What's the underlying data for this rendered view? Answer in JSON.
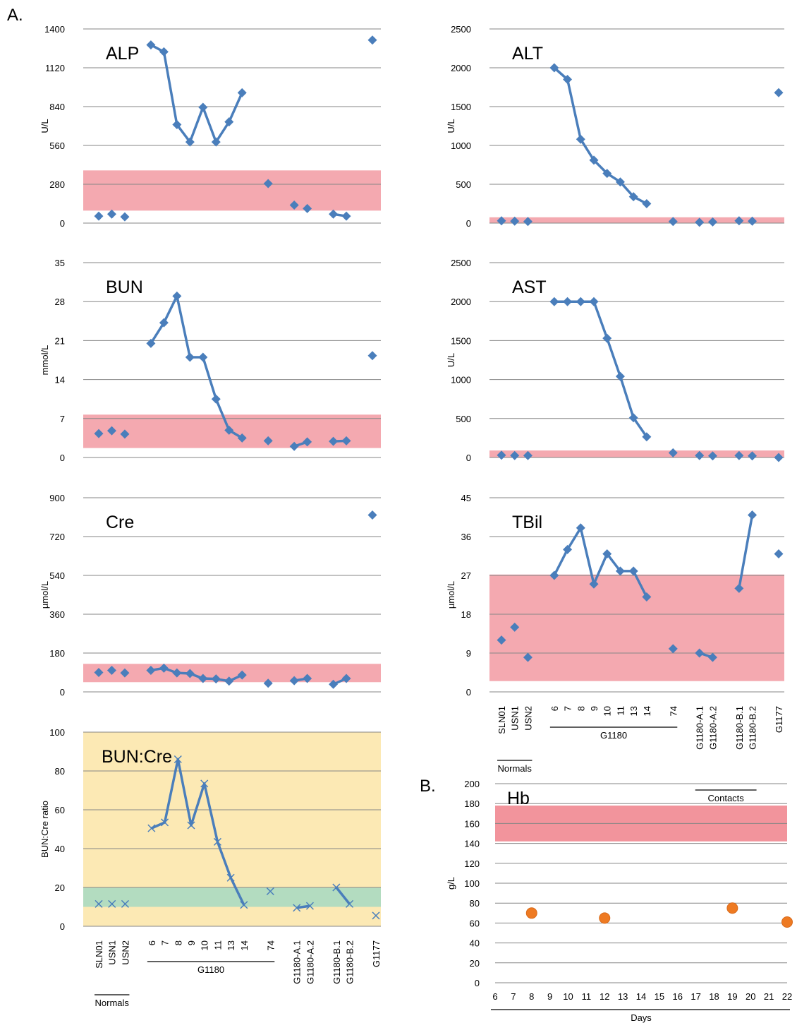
{
  "panel_labels": {
    "a": "A.",
    "b": "B."
  },
  "colors": {
    "series": "#4a7ebb",
    "marker": "#4a7ebb",
    "ref_band": "#f4a9b0",
    "hb_band": "#f2949c",
    "ratio_bg": "#fce9b4",
    "ratio_band": "#b3dcc0",
    "hb_point": "#ee7a22",
    "grid": "#868686"
  },
  "groups": {
    "normals": "Normals",
    "g1180": "G1180",
    "contacts": "Contacts",
    "days": "Days"
  },
  "categories": [
    "SLN01",
    "USN1",
    "USN2",
    "6",
    "7",
    "8",
    "9",
    "10",
    "11",
    "13",
    "14",
    "74",
    "G1180-A.1",
    "G1180-A.2",
    "G1180-B.1",
    "G1180-B.2",
    "G1177"
  ],
  "chart_data": [
    {
      "type": "line",
      "title": "ALP",
      "ylabel": "U/L",
      "ylim": [
        0,
        1400
      ],
      "yticks": [
        0,
        280,
        560,
        840,
        1120,
        1400
      ],
      "reference_range": [
        90,
        380
      ],
      "marker": "diamond",
      "values": [
        50,
        65,
        45,
        1285,
        1235,
        710,
        585,
        835,
        585,
        730,
        940,
        285,
        130,
        105,
        65,
        50,
        1320
      ],
      "connected": [
        [
          3,
          10
        ],
        [
          14,
          15
        ]
      ]
    },
    {
      "type": "line",
      "title": "ALT",
      "ylabel": "U/L",
      "ylim": [
        0,
        2500
      ],
      "yticks": [
        0,
        500,
        1000,
        1500,
        2000,
        2500
      ],
      "reference_range": [
        0,
        75
      ],
      "marker": "diamond",
      "values": [
        30,
        25,
        20,
        2000,
        1850,
        1080,
        810,
        640,
        530,
        340,
        250,
        20,
        10,
        15,
        30,
        25,
        1680
      ],
      "connected": [
        [
          3,
          10
        ]
      ]
    },
    {
      "type": "line",
      "title": "BUN",
      "ylabel": "mmol/L",
      "ylim": [
        0,
        35
      ],
      "yticks": [
        0,
        7,
        14,
        21,
        28,
        35
      ],
      "reference_range": [
        1.7,
        7.7
      ],
      "marker": "diamond",
      "values": [
        4.3,
        4.8,
        4.2,
        20.5,
        24.2,
        29,
        18,
        18,
        10.5,
        4.9,
        3.5,
        3,
        2,
        2.8,
        2.9,
        3,
        18.3
      ],
      "connected": [
        [
          3,
          10
        ],
        [
          12,
          13
        ],
        [
          14,
          15
        ]
      ]
    },
    {
      "type": "line",
      "title": "AST",
      "ylabel": "U/L",
      "ylim": [
        0,
        2500
      ],
      "yticks": [
        0,
        500,
        1000,
        1500,
        2000,
        2500
      ],
      "reference_range": [
        0,
        90
      ],
      "marker": "diamond",
      "values": [
        30,
        25,
        25,
        2000,
        2000,
        2000,
        2000,
        1530,
        1040,
        510,
        265,
        60,
        25,
        20,
        25,
        20,
        0
      ],
      "connected": [
        [
          3,
          10
        ]
      ]
    },
    {
      "type": "line",
      "title": "Cre",
      "ylabel": "µmol/L",
      "ylim": [
        0,
        900
      ],
      "yticks": [
        0,
        180,
        360,
        540,
        720,
        900
      ],
      "reference_range": [
        45,
        130
      ],
      "marker": "diamond",
      "values": [
        90,
        100,
        88,
        100,
        110,
        88,
        85,
        62,
        60,
        50,
        78,
        40,
        52,
        62,
        35,
        62,
        820
      ],
      "connected": [
        [
          3,
          10
        ],
        [
          12,
          13
        ],
        [
          14,
          15
        ]
      ]
    },
    {
      "type": "line",
      "title": "TBil",
      "ylabel": "µmol/L",
      "ylim": [
        0,
        45
      ],
      "yticks": [
        0,
        9,
        18,
        27,
        36,
        45
      ],
      "reference_range": [
        2.5,
        27.2
      ],
      "marker": "diamond",
      "values": [
        12,
        15,
        8,
        27,
        33,
        38,
        25,
        32,
        28,
        28,
        22,
        10,
        9,
        8,
        24,
        41,
        32
      ],
      "connected": [
        [
          3,
          10
        ],
        [
          12,
          13
        ],
        [
          14,
          15
        ]
      ]
    },
    {
      "type": "line",
      "title": "BUN:Cre",
      "ylabel": "BUN:Cre ratio",
      "ylim": [
        0,
        100
      ],
      "yticks": [
        0,
        20,
        40,
        60,
        80,
        100
      ],
      "reference_range": [
        10,
        20
      ],
      "marker": "x",
      "values": [
        11.5,
        11.5,
        11.5,
        50.5,
        53.5,
        86,
        52,
        73.5,
        43.5,
        25,
        11,
        18,
        9.5,
        10.5,
        20,
        11.5,
        5.5
      ],
      "connected": [
        [
          3,
          10
        ],
        [
          12,
          13
        ],
        [
          14,
          15
        ]
      ]
    },
    {
      "type": "scatter",
      "title": "Hb",
      "ylabel": "g/L",
      "xlabel": "Days",
      "xlim": [
        6,
        22
      ],
      "xticks": [
        6,
        7,
        8,
        9,
        10,
        11,
        12,
        13,
        14,
        15,
        16,
        17,
        18,
        19,
        20,
        21,
        22
      ],
      "ylim": [
        0,
        200
      ],
      "yticks": [
        0,
        20,
        40,
        60,
        80,
        100,
        120,
        140,
        160,
        180,
        200
      ],
      "reference_range": [
        142,
        178
      ],
      "x": [
        8,
        12,
        19,
        22
      ],
      "values": [
        70,
        65,
        75,
        61
      ]
    }
  ]
}
